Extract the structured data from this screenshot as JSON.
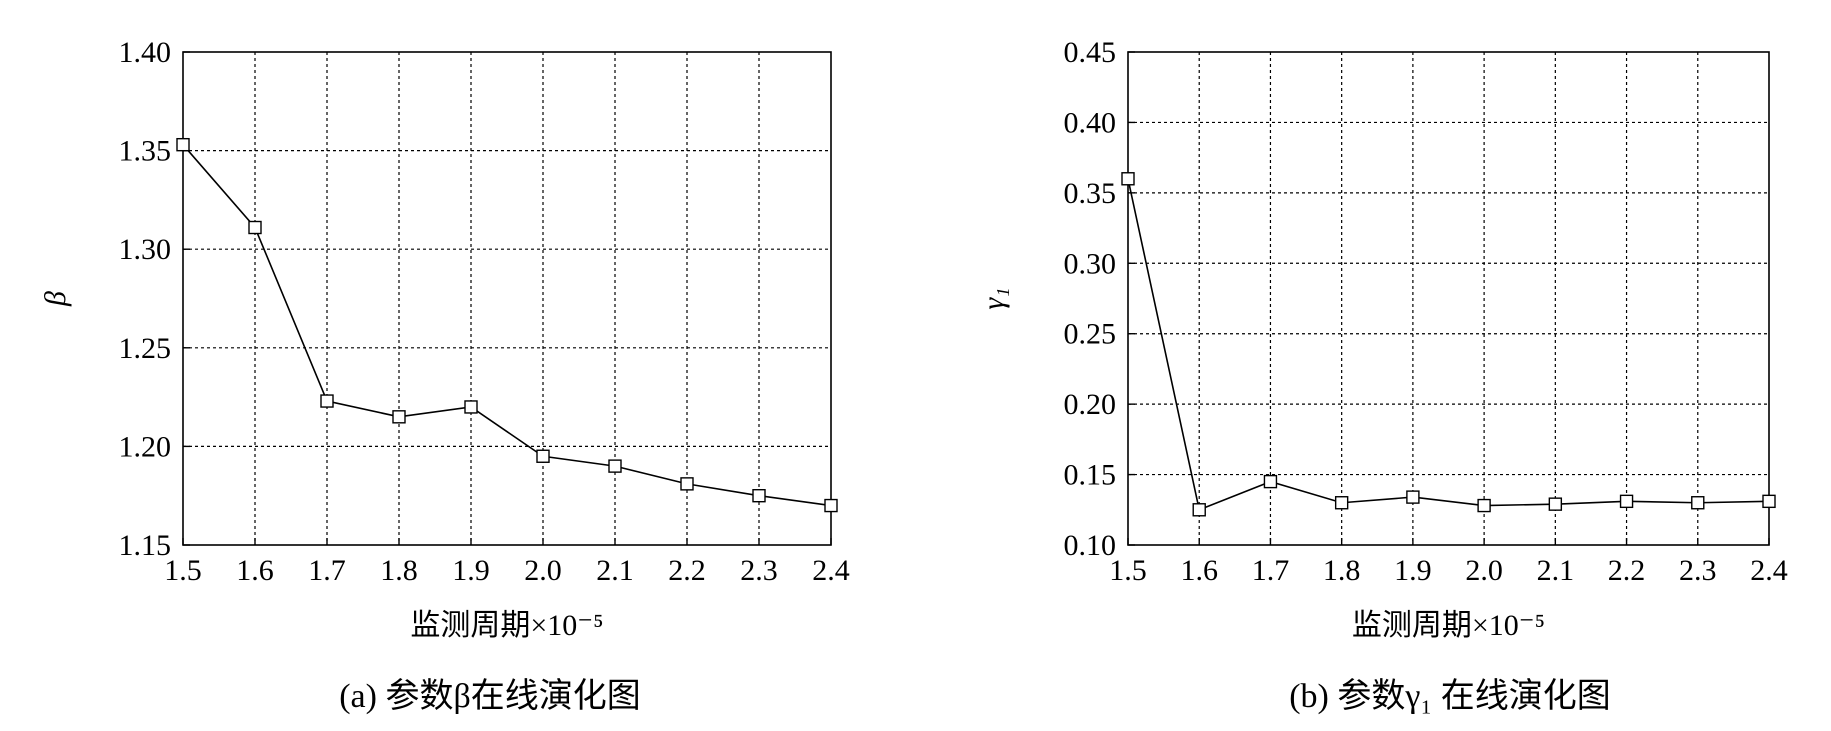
{
  "chart_data": [
    {
      "type": "line",
      "caption": "(a)  参数β在线演化图",
      "xlabel": "监测周期×10⁻⁵",
      "ylabel": "β",
      "x": [
        1.5,
        1.6,
        1.7,
        1.8,
        1.9,
        2.0,
        2.1,
        2.2,
        2.3,
        2.4
      ],
      "xlim": [
        1.5,
        2.4
      ],
      "ylim": [
        1.15,
        1.4
      ],
      "xticks": [
        "1.5",
        "1.6",
        "1.7",
        "1.8",
        "1.9",
        "2.0",
        "2.1",
        "2.2",
        "2.3",
        "2.4"
      ],
      "yticks": [
        "1.15",
        "1.20",
        "1.25",
        "1.30",
        "1.35",
        "1.40"
      ],
      "grid": true,
      "marker": "square",
      "series": [
        {
          "values": [
            1.353,
            1.311,
            1.223,
            1.215,
            1.22,
            1.195,
            1.19,
            1.181,
            1.175,
            1.17
          ]
        }
      ]
    },
    {
      "type": "line",
      "caption": "(b)  参数γ₁ 在线演化图",
      "xlabel": "监测周期×10⁻⁵",
      "ylabel": "γ₁",
      "x": [
        1.5,
        1.6,
        1.7,
        1.8,
        1.9,
        2.0,
        2.1,
        2.2,
        2.3,
        2.4
      ],
      "xlim": [
        1.5,
        2.4
      ],
      "ylim": [
        0.1,
        0.45
      ],
      "xticks": [
        "1.5",
        "1.6",
        "1.7",
        "1.8",
        "1.9",
        "2.0",
        "2.1",
        "2.2",
        "2.3",
        "2.4"
      ],
      "yticks": [
        "0.10",
        "0.15",
        "0.20",
        "0.25",
        "0.30",
        "0.35",
        "0.40",
        "0.45"
      ],
      "grid": true,
      "marker": "square",
      "series": [
        {
          "values": [
            0.36,
            0.125,
            0.145,
            0.13,
            0.134,
            0.128,
            0.129,
            0.131,
            0.13,
            0.131
          ]
        }
      ]
    }
  ]
}
